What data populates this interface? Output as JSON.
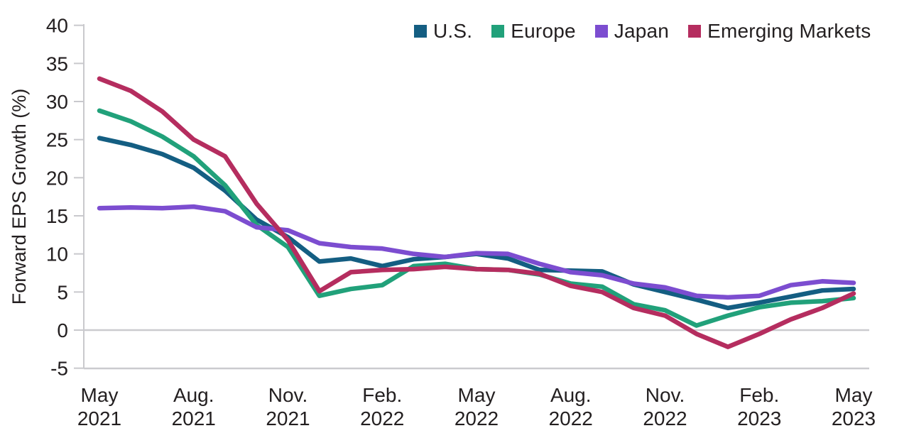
{
  "chart_data": {
    "type": "line",
    "title": "",
    "ylabel": "Forward EPS Growth (%)",
    "xlabel": "",
    "ylim": [
      -5,
      40
    ],
    "yticks": [
      40,
      35,
      30,
      25,
      20,
      15,
      10,
      5,
      0,
      -5
    ],
    "grid": "zero-line and bottom baseline only, left axis with outward ticks",
    "legend_position": "top-center",
    "x": [
      "May 2021",
      "Jun 2021",
      "Jul 2021",
      "Aug 2021",
      "Sep 2021",
      "Oct 2021",
      "Nov 2021",
      "Dec 2021",
      "Jan 2022",
      "Feb 2022",
      "Mar 2022",
      "Apr 2022",
      "May 2022",
      "Jun 2022",
      "Jul 2022",
      "Aug 2022",
      "Sep 2022",
      "Oct 2022",
      "Nov 2022",
      "Dec 2022",
      "Jan 2023",
      "Feb 2023",
      "Mar 2023",
      "Apr 2023",
      "May 2023"
    ],
    "x_axis_tick_labels": [
      {
        "line1": "May",
        "line2": "2021",
        "month_index": 0
      },
      {
        "line1": "Aug.",
        "line2": "2021",
        "month_index": 3
      },
      {
        "line1": "Nov.",
        "line2": "2021",
        "month_index": 6
      },
      {
        "line1": "Feb.",
        "line2": "2022",
        "month_index": 9
      },
      {
        "line1": "May",
        "line2": "2022",
        "month_index": 12
      },
      {
        "line1": "Aug.",
        "line2": "2022",
        "month_index": 15
      },
      {
        "line1": "Nov.",
        "line2": "2022",
        "month_index": 18
      },
      {
        "line1": "Feb.",
        "line2": "2023",
        "month_index": 21
      },
      {
        "line1": "May",
        "line2": "2023",
        "month_index": 24
      }
    ],
    "series": [
      {
        "name": "U.S.",
        "color": "#145E82",
        "values": [
          25.2,
          24.3,
          23.1,
          21.3,
          18.3,
          14.5,
          12.2,
          9.0,
          9.4,
          8.4,
          9.3,
          9.6,
          10.0,
          9.4,
          7.9,
          7.8,
          7.7,
          6.0,
          5.0,
          4.0,
          2.9,
          3.6,
          4.4,
          5.2,
          5.4
        ]
      },
      {
        "name": "Europe",
        "color": "#21A17A",
        "values": [
          28.8,
          27.4,
          25.4,
          22.8,
          19.0,
          13.8,
          10.9,
          4.5,
          5.4,
          5.9,
          8.4,
          8.7,
          8.0,
          7.9,
          7.3,
          6.1,
          5.7,
          3.4,
          2.6,
          0.6,
          1.9,
          3.0,
          3.6,
          3.8,
          4.2
        ]
      },
      {
        "name": "Japan",
        "color": "#7C4DD0",
        "values": [
          16.0,
          16.1,
          16.0,
          16.2,
          15.6,
          13.5,
          13.1,
          11.4,
          10.9,
          10.7,
          10.0,
          9.6,
          10.1,
          10.0,
          8.7,
          7.6,
          7.2,
          6.1,
          5.6,
          4.5,
          4.3,
          4.5,
          5.9,
          6.4,
          6.2
        ]
      },
      {
        "name": "Emerging Markets",
        "color": "#B52D5F",
        "values": [
          33.0,
          31.4,
          28.7,
          25.0,
          22.8,
          16.6,
          11.8,
          5.1,
          7.6,
          7.9,
          8.0,
          8.3,
          8.0,
          7.9,
          7.4,
          5.8,
          5.0,
          2.9,
          1.9,
          -0.5,
          -2.2,
          -0.5,
          1.4,
          2.9,
          4.8
        ]
      }
    ]
  }
}
